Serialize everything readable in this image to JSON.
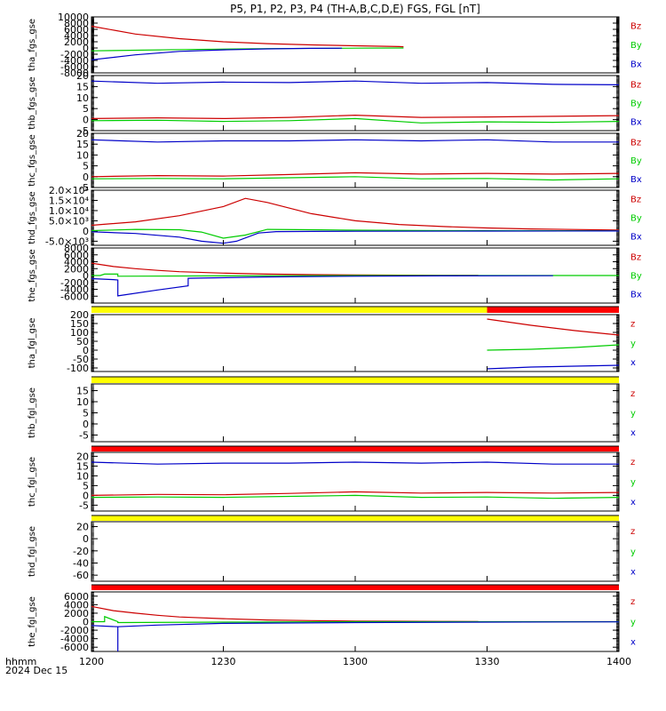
{
  "title": "P5, P1, P2, P3, P4 (TH-A,B,C,D,E) FGS, FGL [nT]",
  "footer": {
    "axis_name": "hhmm",
    "date": "2024 Dec 15"
  },
  "colors": {
    "x": "#0000c8",
    "y": "#00cc00",
    "z": "#cc0000",
    "yellow": "#ffff00",
    "red": "#ff0000",
    "axes": "#000000"
  },
  "chart_data": {
    "type": "line",
    "x_axis": {
      "label": "hhmm",
      "ticks": [
        "1200",
        "1230",
        "1300",
        "1330",
        "1400"
      ],
      "range": [
        "12:00",
        "14:00"
      ]
    },
    "panels": [
      {
        "ylabel": "tha_fgs_gse",
        "ylim": [
          -8000,
          10000
        ],
        "yticks": [
          "10000",
          "8000",
          "6000",
          "4000",
          "2000",
          "0",
          "-2000",
          "-4000",
          "-6000",
          "-8000"
        ],
        "legend": [
          "Bz",
          "By",
          "Bx"
        ],
        "series": [
          {
            "name": "Bz",
            "t": [
              "12:00",
              "12:10",
              "12:20",
              "12:30",
              "12:40",
              "12:50",
              "13:00",
              "13:10",
              "13:11"
            ],
            "v": [
              7000,
              4500,
              3000,
              2000,
              1400,
              1000,
              700,
              450,
              400
            ]
          },
          {
            "name": "By",
            "t": [
              "12:00",
              "12:20",
              "12:40",
              "13:00",
              "13:11"
            ],
            "v": [
              -900,
              -500,
              -200,
              -50,
              0
            ]
          },
          {
            "name": "Bx",
            "t": [
              "12:00",
              "12:10",
              "12:20",
              "12:30",
              "12:40",
              "12:50",
              "12:57"
            ],
            "v": [
              -3800,
              -2200,
              -1100,
              -600,
              -300,
              -100,
              -50
            ]
          }
        ]
      },
      {
        "ylabel": "thb_fgs_gse",
        "ylim": [
          -5,
          20
        ],
        "yticks": [
          "20",
          "15",
          "10",
          "5",
          "0",
          "-5"
        ],
        "legend": [
          "Bz",
          "By",
          "Bx"
        ],
        "series": [
          {
            "name": "Bz",
            "t": [
              "12:00",
              "12:15",
              "12:30",
              "12:45",
              "13:00",
              "13:15",
              "13:30",
              "13:45",
              "14:00"
            ],
            "v": [
              0.5,
              0.8,
              0.5,
              1.0,
              2.0,
              1.0,
              1.2,
              1.5,
              1.8
            ]
          },
          {
            "name": "By",
            "t": [
              "12:00",
              "12:15",
              "12:30",
              "12:45",
              "13:00",
              "13:15",
              "13:30",
              "13:45",
              "14:00"
            ],
            "v": [
              -0.5,
              -0.3,
              -0.8,
              -0.5,
              0.5,
              -1.5,
              -1.0,
              -1.2,
              -0.8
            ]
          },
          {
            "name": "Bx",
            "t": [
              "12:00",
              "12:15",
              "12:30",
              "12:45",
              "13:00",
              "13:15",
              "13:30",
              "13:45",
              "14:00"
            ],
            "v": [
              17.5,
              16.5,
              17.0,
              16.8,
              17.5,
              16.5,
              16.8,
              16.0,
              15.8
            ]
          }
        ]
      },
      {
        "ylabel": "thc_fgs_gse",
        "ylim": [
          -5,
          20
        ],
        "yticks": [
          "20",
          "15",
          "10",
          "5",
          "0",
          "-5"
        ],
        "legend": [
          "Bz",
          "By",
          "Bx"
        ],
        "series": [
          {
            "name": "Bz",
            "t": [
              "12:00",
              "12:15",
              "12:30",
              "12:45",
              "13:00",
              "13:15",
              "13:30",
              "13:45",
              "14:00"
            ],
            "v": [
              0.0,
              0.5,
              0.3,
              1.0,
              1.8,
              1.2,
              1.5,
              1.2,
              1.5
            ]
          },
          {
            "name": "By",
            "t": [
              "12:00",
              "12:15",
              "12:30",
              "12:45",
              "13:00",
              "13:15",
              "13:30",
              "13:45",
              "14:00"
            ],
            "v": [
              -1.0,
              -0.8,
              -1.0,
              -0.5,
              0.0,
              -1.0,
              -0.8,
              -1.5,
              -1.0
            ]
          },
          {
            "name": "Bx",
            "t": [
              "12:00",
              "12:15",
              "12:30",
              "12:45",
              "13:00",
              "13:15",
              "13:30",
              "13:45",
              "14:00"
            ],
            "v": [
              17.0,
              16.0,
              16.5,
              16.5,
              17.0,
              16.5,
              17.0,
              16.0,
              16.0
            ]
          }
        ]
      },
      {
        "ylabel": "thd_fgs_gse",
        "ylim": [
          -7000,
          20000
        ],
        "yticks": [
          "2.0×10⁴",
          "1.5×10⁴",
          "1.0×10⁴",
          "5.0×10³",
          "0",
          "-5.0×10³"
        ],
        "tick_values": [
          20000,
          15000,
          10000,
          5000,
          0,
          -5000
        ],
        "legend": [
          "Bz",
          "By",
          "Bx"
        ],
        "series": [
          {
            "name": "Bz",
            "t": [
              "12:00",
              "12:10",
              "12:20",
              "12:30",
              "12:35",
              "12:40",
              "12:50",
              "13:00",
              "13:10",
              "13:20",
              "13:30",
              "13:40",
              "14:00"
            ],
            "v": [
              2800,
              4500,
              7500,
              12000,
              16000,
              14000,
              8500,
              5000,
              3200,
              2200,
              1500,
              1000,
              500
            ]
          },
          {
            "name": "By",
            "t": [
              "12:00",
              "12:10",
              "12:20",
              "12:25",
              "12:30",
              "12:35",
              "12:40",
              "12:50",
              "13:00",
              "13:20",
              "14:00"
            ],
            "v": [
              200,
              800,
              600,
              -500,
              -3500,
              -2000,
              800,
              600,
              400,
              200,
              100
            ]
          },
          {
            "name": "Bx",
            "t": [
              "12:00",
              "12:10",
              "12:20",
              "12:25",
              "12:30",
              "12:33",
              "12:38",
              "12:42",
              "12:50",
              "13:00",
              "13:30",
              "14:00"
            ],
            "v": [
              -400,
              -1200,
              -3000,
              -5000,
              -6000,
              -5000,
              -1000,
              -300,
              -200,
              -100,
              -50,
              0
            ]
          }
        ]
      },
      {
        "ylabel": "the_fgs_gse",
        "ylim": [
          -8000,
          8000
        ],
        "yticks": [
          "8000",
          "6000",
          "4000",
          "2000",
          "0",
          "-2000",
          "-4000",
          "-6000"
        ],
        "legend": [
          "Bz",
          "By",
          "Bx"
        ],
        "series": [
          {
            "name": "Bz",
            "t": [
              "12:00",
              "12:05",
              "12:10",
              "12:15",
              "12:20",
              "12:30",
              "12:40",
              "12:50",
              "13:00",
              "13:10",
              "13:20",
              "13:28"
            ],
            "v": [
              3600,
              2600,
              2000,
              1500,
              1100,
              700,
              400,
              250,
              150,
              100,
              60,
              50
            ]
          },
          {
            "name": "By",
            "t": [
              "12:00",
              "12:02",
              "12:03",
              "12:06",
              "12:06",
              "12:30",
              "13:00",
              "13:30",
              "14:00"
            ],
            "v": [
              0,
              0,
              400,
              400,
              -200,
              -100,
              0,
              0,
              0
            ]
          },
          {
            "name": "Bx",
            "t": [
              "12:00",
              "12:05",
              "12:06",
              "12:06",
              "12:15",
              "12:22",
              "12:22",
              "12:40",
              "13:00",
              "13:20",
              "13:45"
            ],
            "v": [
              -900,
              -1200,
              -1300,
              -5900,
              -4200,
              -3000,
              -800,
              -400,
              -200,
              -100,
              -50
            ]
          }
        ]
      },
      {
        "ylabel": "tha_fgl_gse",
        "ylim": [
          -120,
          200
        ],
        "yticks": [
          "200",
          "150",
          "100",
          "50",
          "0",
          "-50",
          "-100"
        ],
        "legend": [
          "z",
          "y",
          "x"
        ],
        "bar": [
          {
            "color": "yellow",
            "from": "12:00",
            "to": "13:30"
          },
          {
            "color": "red",
            "from": "13:30",
            "to": "14:00"
          }
        ],
        "series": [
          {
            "name": "z",
            "t": [
              "13:30",
              "13:40",
              "13:50",
              "14:00"
            ],
            "v": [
              175,
              140,
              110,
              85
            ]
          },
          {
            "name": "y",
            "t": [
              "13:30",
              "13:40",
              "13:50",
              "14:00"
            ],
            "v": [
              0,
              5,
              15,
              30
            ]
          },
          {
            "name": "x",
            "t": [
              "13:30",
              "13:40",
              "13:50",
              "14:00"
            ],
            "v": [
              -105,
              -95,
              -90,
              -85
            ]
          }
        ]
      },
      {
        "ylabel": "thb_fgl_gse",
        "ylim": [
          -8,
          18
        ],
        "yticks": [
          "15",
          "10",
          "5",
          "0",
          "-5"
        ],
        "legend": [
          "z",
          "y",
          "x"
        ],
        "bar": [
          {
            "color": "yellow",
            "from": "12:00",
            "to": "14:00"
          }
        ],
        "series": []
      },
      {
        "ylabel": "thc_fgl_gse",
        "ylim": [
          -8,
          22
        ],
        "yticks": [
          "20",
          "15",
          "10",
          "5",
          "0",
          "-5"
        ],
        "legend": [
          "z",
          "y",
          "x"
        ],
        "bar": [
          {
            "color": "red",
            "from": "12:00",
            "to": "14:00"
          }
        ],
        "series": [
          {
            "name": "z",
            "t": [
              "12:00",
              "12:15",
              "12:30",
              "12:45",
              "13:00",
              "13:15",
              "13:30",
              "13:45",
              "14:00"
            ],
            "v": [
              0.0,
              0.5,
              0.3,
              1.0,
              1.8,
              1.2,
              1.5,
              1.2,
              1.5
            ]
          },
          {
            "name": "y",
            "t": [
              "12:00",
              "12:15",
              "12:30",
              "12:45",
              "13:00",
              "13:15",
              "13:30",
              "13:45",
              "14:00"
            ],
            "v": [
              -1.0,
              -0.8,
              -1.0,
              -0.5,
              0.0,
              -1.0,
              -0.8,
              -1.5,
              -1.0
            ]
          },
          {
            "name": "x",
            "t": [
              "12:00",
              "12:15",
              "12:30",
              "12:45",
              "13:00",
              "13:15",
              "13:30",
              "13:45",
              "14:00"
            ],
            "v": [
              17.0,
              16.0,
              16.5,
              16.5,
              17.0,
              16.5,
              17.0,
              16.0,
              16.0
            ]
          }
        ]
      },
      {
        "ylabel": "thd_fgl_gse",
        "ylim": [
          -70,
          28
        ],
        "yticks": [
          "20",
          "0",
          "-20",
          "-40",
          "-60"
        ],
        "legend": [
          "z",
          "y",
          "x"
        ],
        "bar": [
          {
            "color": "yellow",
            "from": "12:00",
            "to": "14:00"
          }
        ],
        "series": []
      },
      {
        "ylabel": "the_fgl_gse",
        "ylim": [
          -7000,
          7000
        ],
        "yticks": [
          "6000",
          "4000",
          "2000",
          "0",
          "-2000",
          "-4000",
          "-6000"
        ],
        "legend": [
          "z",
          "y",
          "x"
        ],
        "bar": [
          {
            "color": "red",
            "from": "12:00",
            "to": "14:00"
          }
        ],
        "series": [
          {
            "name": "z",
            "t": [
              "12:00",
              "12:05",
              "12:10",
              "12:15",
              "12:20",
              "12:30",
              "12:40",
              "12:50",
              "13:00",
              "13:10",
              "13:20",
              "13:28"
            ],
            "v": [
              3600,
              2600,
              2000,
              1500,
              1100,
              700,
              400,
              250,
              150,
              100,
              60,
              50
            ]
          },
          {
            "name": "y",
            "t": [
              "12:00",
              "12:03",
              "12:03",
              "12:06",
              "12:06",
              "12:06",
              "12:30",
              "13:00",
              "13:30",
              "14:00"
            ],
            "v": [
              0,
              0,
              1200,
              0,
              -200,
              -200,
              -100,
              0,
              0,
              0
            ]
          },
          {
            "name": "x",
            "t": [
              "12:00",
              "12:06",
              "12:06",
              "12:06",
              "12:15",
              "12:30",
              "13:00",
              "13:30",
              "14:00"
            ],
            "v": [
              -900,
              -1200,
              -7000,
              -1200,
              -800,
              -400,
              -200,
              -100,
              -50
            ]
          }
        ]
      }
    ]
  }
}
